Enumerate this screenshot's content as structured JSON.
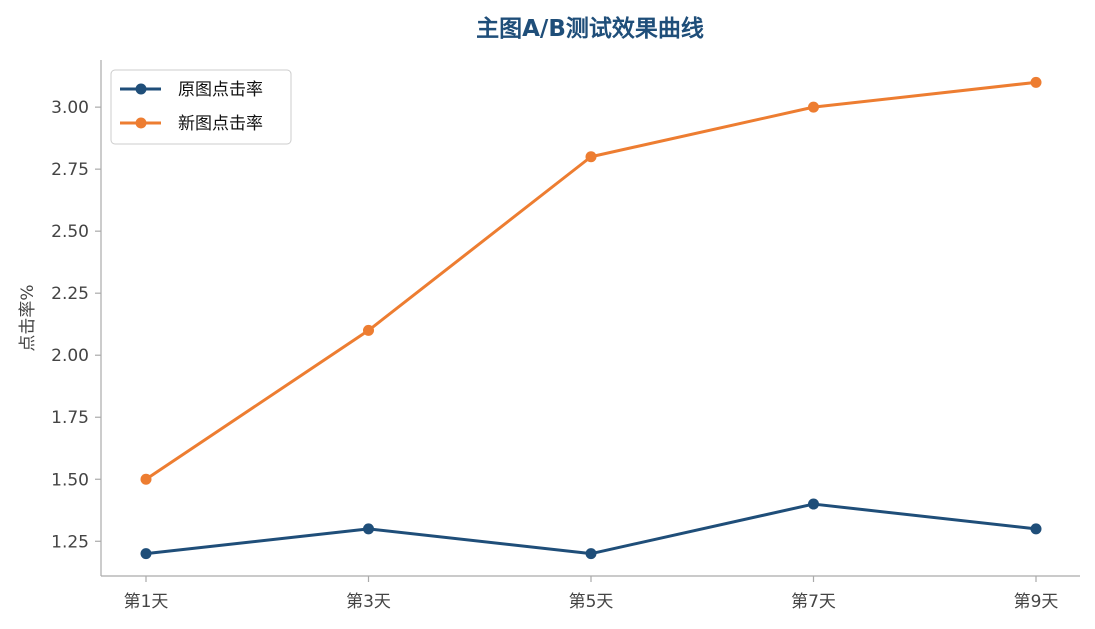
{
  "chart_data": {
    "type": "line",
    "title": "主图A/B测试效果曲线",
    "xlabel": "",
    "ylabel": "点击率%",
    "categories": [
      "第1天",
      "第3天",
      "第5天",
      "第7天",
      "第9天"
    ],
    "series": [
      {
        "name": "原图点击率",
        "values": [
          1.2,
          1.3,
          1.2,
          1.4,
          1.3
        ],
        "color": "#1f4e79"
      },
      {
        "name": "新图点击率",
        "values": [
          1.5,
          2.1,
          2.8,
          3.0,
          3.1
        ],
        "color": "#ed7d31"
      }
    ],
    "ylim": [
      1.11,
      3.19
    ],
    "yticks": [
      "1.25",
      "1.50",
      "1.75",
      "2.00",
      "2.25",
      "2.50",
      "2.75",
      "3.00"
    ],
    "grid": false,
    "legend_position": "top-left",
    "colors": {
      "title": "#1f4e79",
      "axis": "#aaaaaa",
      "tick_text": "#444444"
    }
  }
}
